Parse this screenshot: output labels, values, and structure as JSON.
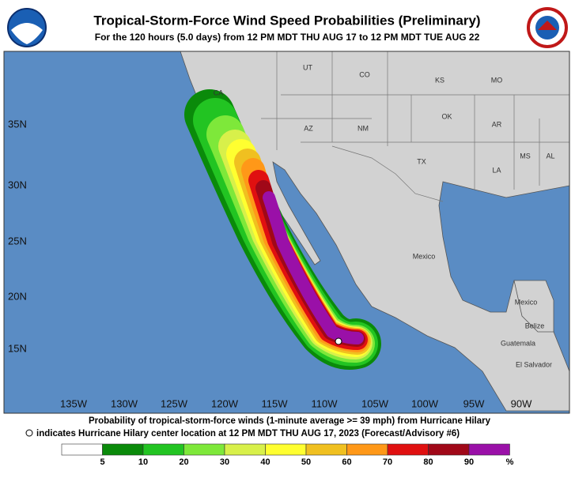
{
  "header": {
    "title": "Tropical-Storm-Force Wind Speed Probabilities (Preliminary)",
    "subtitle": "For the 120 hours (5.0 days) from 12 PM MDT THU AUG 17 to 12 PM MDT TUE AUG 22"
  },
  "map": {
    "lat_labels": [
      "35N",
      "30N",
      "25N",
      "20N",
      "15N"
    ],
    "lon_labels": [
      "135W",
      "130W",
      "125W",
      "120W",
      "115W",
      "110W",
      "105W",
      "100W",
      "95W",
      "90W"
    ],
    "places": [
      "UT",
      "CO",
      "KS",
      "MO",
      "CA",
      "AZ",
      "NM",
      "OK",
      "AR",
      "TX",
      "MS",
      "AL",
      "LA",
      "Mexico",
      "Mexico",
      "Belize",
      "Guatemala",
      "El Salvador"
    ]
  },
  "footer": {
    "line1": "Probability of tropical-storm-force winds (1-minute average >= 39 mph) from Hurricane Hilary",
    "line2": "indicates Hurricane Hilary center location at 12 PM MDT THU AUG 17, 2023 (Forecast/Advisory #6)"
  },
  "legend": {
    "bounds": [
      5,
      10,
      20,
      30,
      40,
      50,
      60,
      70,
      80,
      90
    ],
    "unit": "%",
    "colors": [
      "#ffffff",
      "#0a8a0a",
      "#22c422",
      "#7ee83a",
      "#d8f04a",
      "#ffff30",
      "#f0c020",
      "#ff9818",
      "#e01010",
      "#a00818",
      "#9a10a8"
    ]
  }
}
